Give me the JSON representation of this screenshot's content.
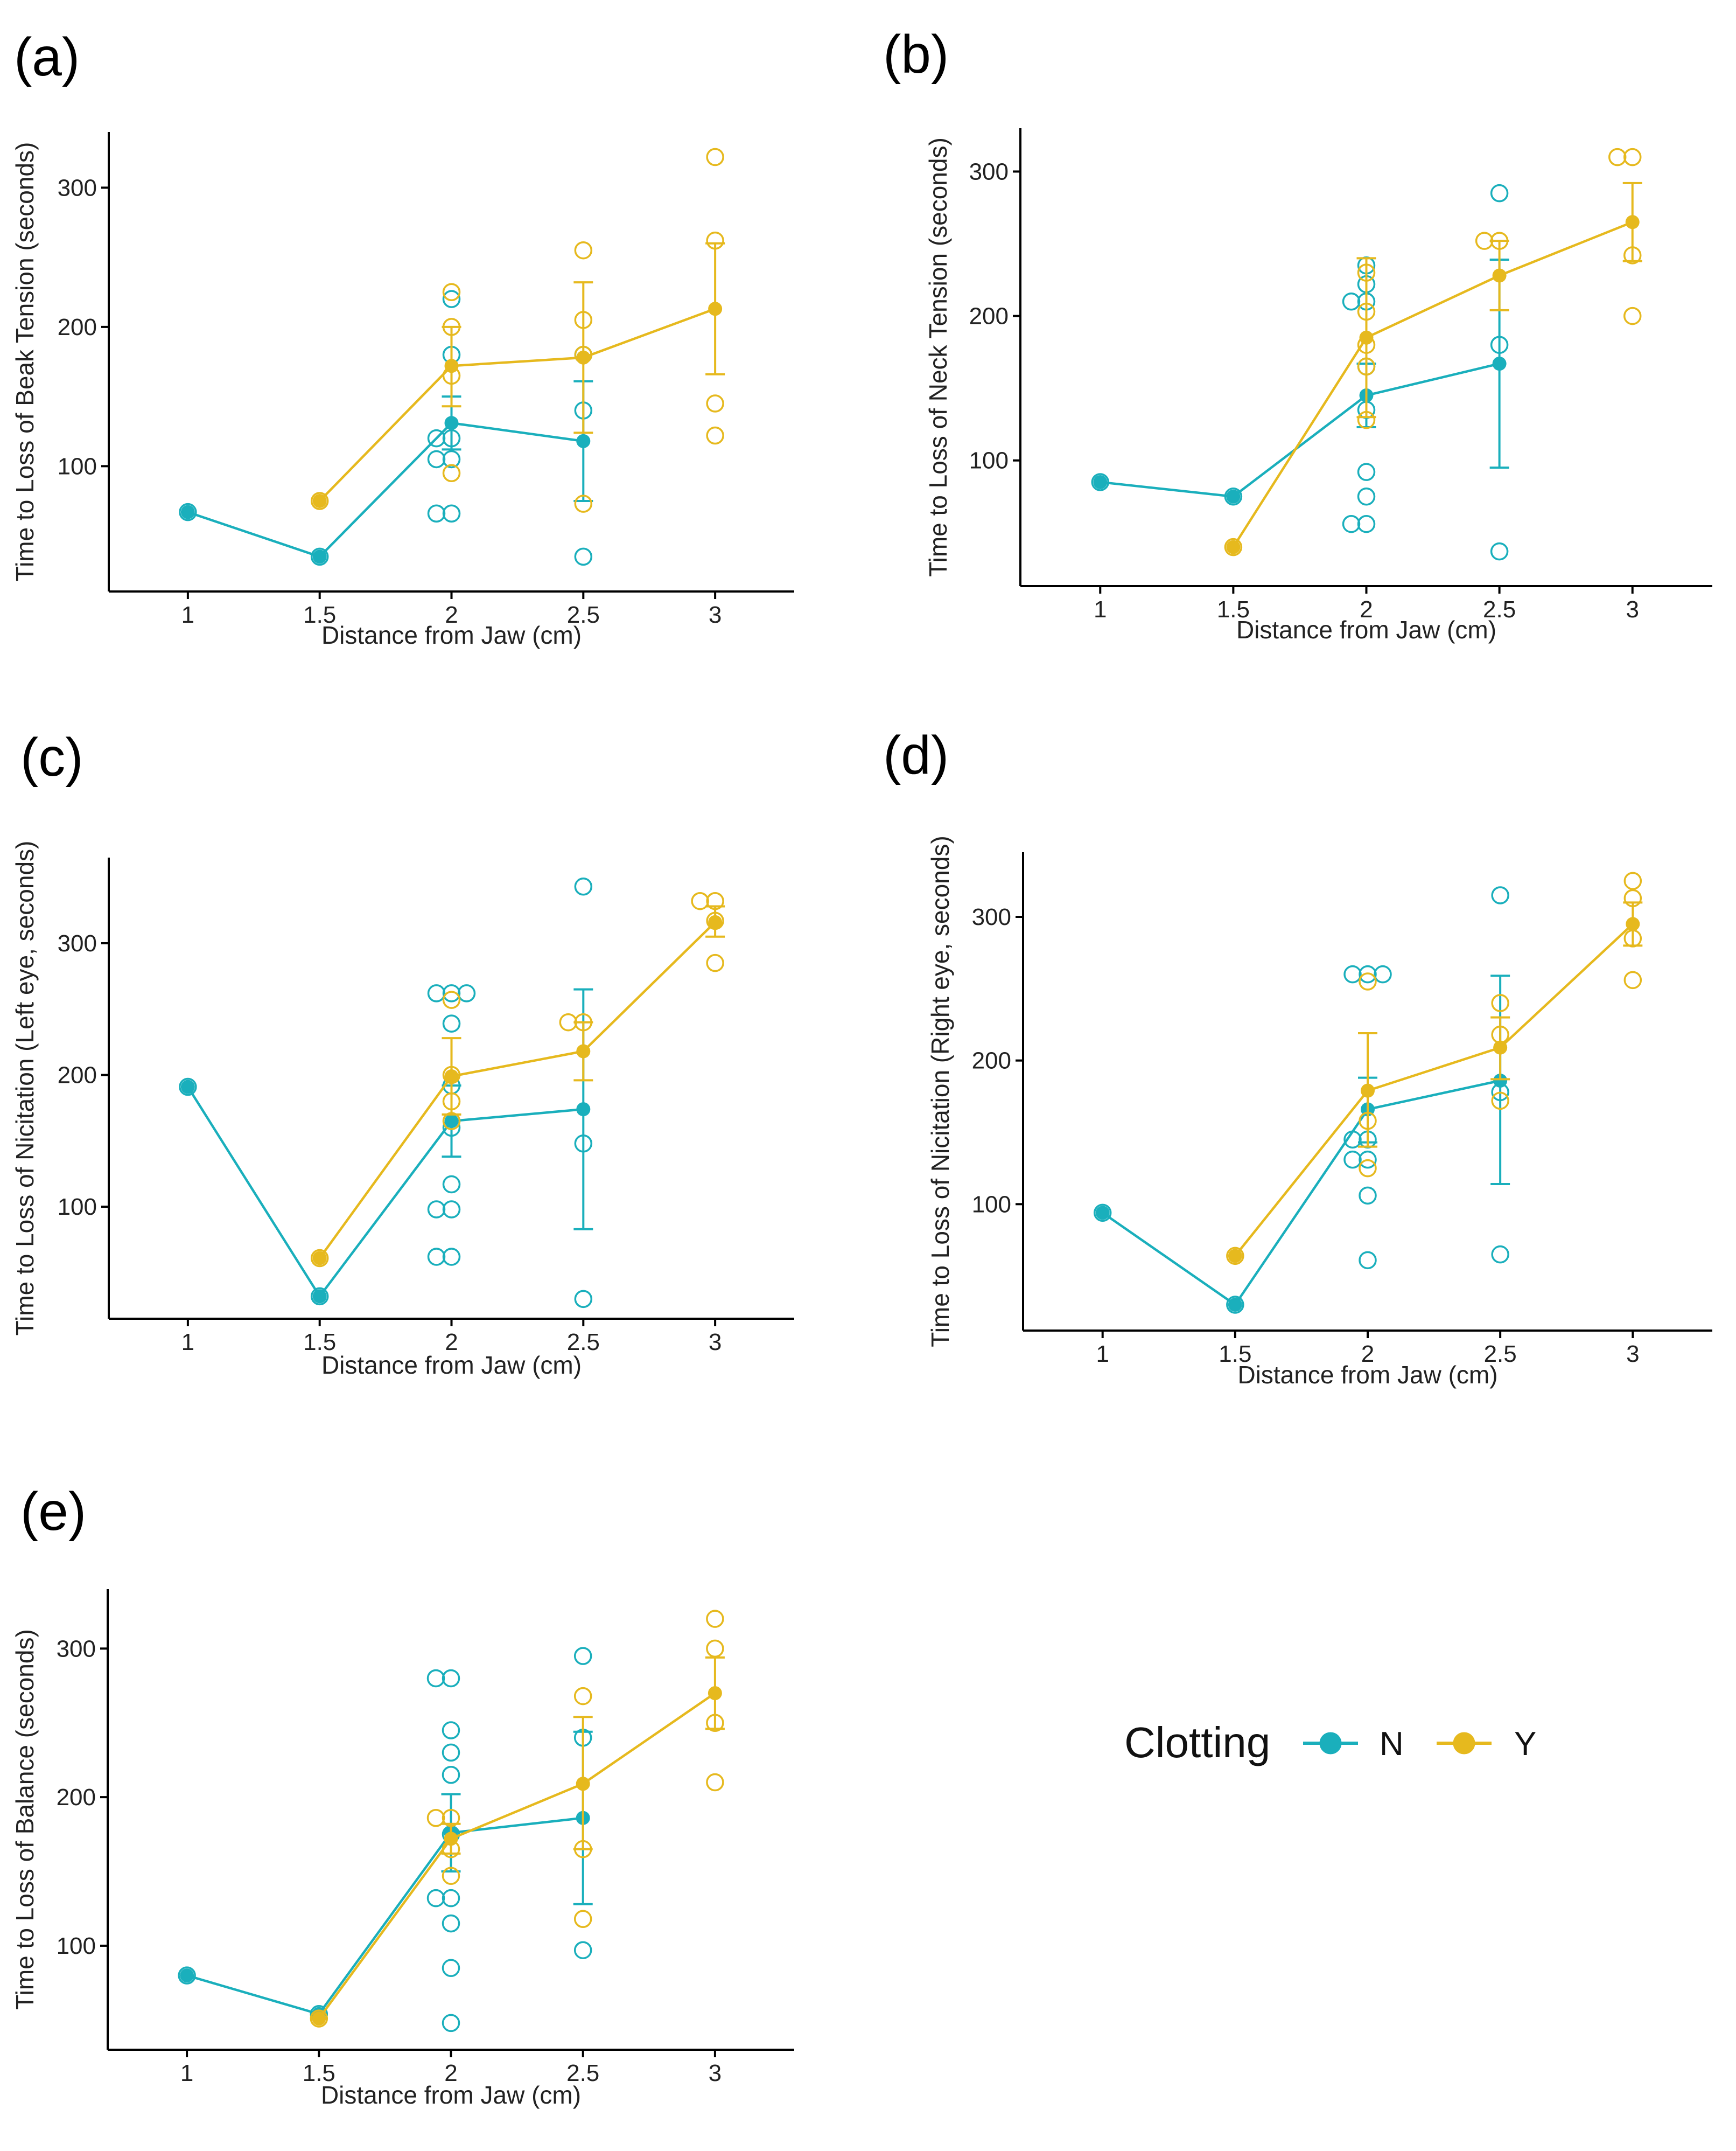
{
  "colors": {
    "N": "#1AAFBC",
    "Y": "#E6B91E"
  },
  "legend": {
    "title": "Clotting",
    "items": [
      {
        "key": "N",
        "label": "N"
      },
      {
        "key": "Y",
        "label": "Y"
      }
    ]
  },
  "chart_data": [
    {
      "type": "line",
      "panel": "(a)",
      "xlabel": "Distance from Jaw (cm)",
      "ylabel": "Time to Loss of Beak Tension (seconds)",
      "xlim": [
        0.7,
        3.3
      ],
      "ylim": [
        10,
        340
      ],
      "xticks": [
        1,
        1.5,
        2,
        2.5,
        3
      ],
      "xticklabels": [
        "1",
        "1.5",
        "2",
        "2.5",
        "3"
      ],
      "yticks": [
        100,
        200,
        300
      ],
      "yticklabels": [
        "100",
        "200",
        "300"
      ],
      "series": [
        {
          "name": "N",
          "means": [
            {
              "x": 1,
              "y": 67
            },
            {
              "x": 1.5,
              "y": 35
            },
            {
              "x": 2,
              "y": 131,
              "lo": 112,
              "hi": 150
            },
            {
              "x": 2.5,
              "y": 118,
              "lo": 75,
              "hi": 161
            }
          ],
          "points": [
            {
              "x": 1,
              "y": 67
            },
            {
              "x": 1.5,
              "y": 35
            },
            {
              "x": 2,
              "y": 220
            },
            {
              "x": 2,
              "y": 180
            },
            {
              "x": 2,
              "y": 120
            },
            {
              "x": 2,
              "y": 120
            },
            {
              "x": 2,
              "y": 105
            },
            {
              "x": 2,
              "y": 105
            },
            {
              "x": 2,
              "y": 66
            },
            {
              "x": 2,
              "y": 66
            },
            {
              "x": 2.5,
              "y": 180
            },
            {
              "x": 2.5,
              "y": 140
            },
            {
              "x": 2.5,
              "y": 35
            }
          ]
        },
        {
          "name": "Y",
          "means": [
            {
              "x": 1.5,
              "y": 75
            },
            {
              "x": 2,
              "y": 172,
              "lo": 143,
              "hi": 200
            },
            {
              "x": 2.5,
              "y": 178,
              "lo": 124,
              "hi": 232
            },
            {
              "x": 3,
              "y": 213,
              "lo": 166,
              "hi": 260
            }
          ],
          "points": [
            {
              "x": 1.5,
              "y": 75
            },
            {
              "x": 2,
              "y": 225
            },
            {
              "x": 2,
              "y": 200
            },
            {
              "x": 2,
              "y": 165
            },
            {
              "x": 2,
              "y": 95
            },
            {
              "x": 2.5,
              "y": 255
            },
            {
              "x": 2.5,
              "y": 205
            },
            {
              "x": 2.5,
              "y": 180
            },
            {
              "x": 2.5,
              "y": 73
            },
            {
              "x": 3,
              "y": 322
            },
            {
              "x": 3,
              "y": 262
            },
            {
              "x": 3,
              "y": 145
            },
            {
              "x": 3,
              "y": 122
            }
          ]
        }
      ]
    },
    {
      "type": "line",
      "panel": "(b)",
      "xlabel": "Distance from Jaw (cm)",
      "ylabel": "Time to Loss of Neck Tension (seconds)",
      "xlim": [
        0.7,
        3.3
      ],
      "ylim": [
        13,
        330
      ],
      "xticks": [
        1,
        1.5,
        2,
        2.5,
        3
      ],
      "xticklabels": [
        "1",
        "1.5",
        "2",
        "2.5",
        "3"
      ],
      "yticks": [
        100,
        200,
        300
      ],
      "yticklabels": [
        "100",
        "200",
        "300"
      ],
      "series": [
        {
          "name": "N",
          "means": [
            {
              "x": 1,
              "y": 85
            },
            {
              "x": 1.5,
              "y": 75
            },
            {
              "x": 2,
              "y": 145,
              "lo": 123,
              "hi": 167
            },
            {
              "x": 2.5,
              "y": 167,
              "lo": 95,
              "hi": 239
            }
          ],
          "points": [
            {
              "x": 1,
              "y": 85
            },
            {
              "x": 1.5,
              "y": 75
            },
            {
              "x": 2,
              "y": 235
            },
            {
              "x": 2,
              "y": 222
            },
            {
              "x": 2,
              "y": 210
            },
            {
              "x": 2,
              "y": 210
            },
            {
              "x": 2,
              "y": 165
            },
            {
              "x": 2,
              "y": 135
            },
            {
              "x": 2,
              "y": 92
            },
            {
              "x": 2,
              "y": 75
            },
            {
              "x": 2,
              "y": 56
            },
            {
              "x": 2,
              "y": 56
            },
            {
              "x": 2.5,
              "y": 285
            },
            {
              "x": 2.5,
              "y": 180
            },
            {
              "x": 2.5,
              "y": 37
            }
          ]
        },
        {
          "name": "Y",
          "means": [
            {
              "x": 1.5,
              "y": 40
            },
            {
              "x": 2,
              "y": 185,
              "lo": 130,
              "hi": 240
            },
            {
              "x": 2.5,
              "y": 228,
              "lo": 204,
              "hi": 252
            },
            {
              "x": 3,
              "y": 265,
              "lo": 238,
              "hi": 292
            }
          ],
          "points": [
            {
              "x": 1.5,
              "y": 40
            },
            {
              "x": 2,
              "y": 230
            },
            {
              "x": 2,
              "y": 203
            },
            {
              "x": 2,
              "y": 180
            },
            {
              "x": 2,
              "y": 165
            },
            {
              "x": 2,
              "y": 128
            },
            {
              "x": 2.5,
              "y": 252
            },
            {
              "x": 2.5,
              "y": 252
            },
            {
              "x": 3,
              "y": 310
            },
            {
              "x": 3,
              "y": 310
            },
            {
              "x": 3,
              "y": 242
            },
            {
              "x": 3,
              "y": 200
            }
          ]
        }
      ]
    },
    {
      "type": "line",
      "panel": "(c)",
      "xlabel": "Distance from Jaw (cm)",
      "ylabel": "Time to Loss of Nicitation (Left eye, seconds)",
      "xlim": [
        0.7,
        3.3
      ],
      "ylim": [
        15,
        365
      ],
      "xticks": [
        1,
        1.5,
        2,
        2.5,
        3
      ],
      "xticklabels": [
        "1",
        "1.5",
        "2",
        "2.5",
        "3"
      ],
      "yticks": [
        100,
        200,
        300
      ],
      "yticklabels": [
        "100",
        "200",
        "300"
      ],
      "series": [
        {
          "name": "N",
          "means": [
            {
              "x": 1,
              "y": 191
            },
            {
              "x": 1.5,
              "y": 32
            },
            {
              "x": 2,
              "y": 165,
              "lo": 138,
              "hi": 192
            },
            {
              "x": 2.5,
              "y": 174,
              "lo": 83,
              "hi": 265
            }
          ],
          "points": [
            {
              "x": 1,
              "y": 191
            },
            {
              "x": 1.5,
              "y": 32
            },
            {
              "x": 2,
              "y": 262
            },
            {
              "x": 2,
              "y": 262
            },
            {
              "x": 2,
              "y": 262
            },
            {
              "x": 2,
              "y": 239
            },
            {
              "x": 2,
              "y": 192
            },
            {
              "x": 2,
              "y": 160
            },
            {
              "x": 2,
              "y": 117
            },
            {
              "x": 2,
              "y": 98
            },
            {
              "x": 2,
              "y": 98
            },
            {
              "x": 2,
              "y": 62
            },
            {
              "x": 2,
              "y": 62
            },
            {
              "x": 2.5,
              "y": 343
            },
            {
              "x": 2.5,
              "y": 148
            },
            {
              "x": 2.5,
              "y": 30
            }
          ]
        },
        {
          "name": "Y",
          "means": [
            {
              "x": 1.5,
              "y": 61
            },
            {
              "x": 2,
              "y": 199,
              "lo": 170,
              "hi": 228
            },
            {
              "x": 2.5,
              "y": 218,
              "lo": 196,
              "hi": 240
            },
            {
              "x": 3,
              "y": 316,
              "lo": 305,
              "hi": 328
            }
          ],
          "points": [
            {
              "x": 1.5,
              "y": 61
            },
            {
              "x": 2,
              "y": 257
            },
            {
              "x": 2,
              "y": 200
            },
            {
              "x": 2,
              "y": 180
            },
            {
              "x": 2,
              "y": 165
            },
            {
              "x": 2.5,
              "y": 240
            },
            {
              "x": 2.5,
              "y": 240
            },
            {
              "x": 3,
              "y": 332
            },
            {
              "x": 3,
              "y": 332
            },
            {
              "x": 3,
              "y": 317
            },
            {
              "x": 3,
              "y": 285
            }
          ]
        }
      ]
    },
    {
      "type": "line",
      "panel": "(d)",
      "xlabel": "Distance from Jaw (cm)",
      "ylabel": "Time to Loss of Nicitation (Right eye, seconds)",
      "xlim": [
        0.7,
        3.3
      ],
      "ylim": [
        12,
        345
      ],
      "xticks": [
        1,
        1.5,
        2,
        2.5,
        3
      ],
      "xticklabels": [
        "1",
        "1.5",
        "2",
        "2.5",
        "3"
      ],
      "yticks": [
        100,
        200,
        300
      ],
      "yticklabels": [
        "100",
        "200",
        "300"
      ],
      "series": [
        {
          "name": "N",
          "means": [
            {
              "x": 1,
              "y": 94
            },
            {
              "x": 1.5,
              "y": 30
            },
            {
              "x": 2,
              "y": 166,
              "lo": 143,
              "hi": 188
            },
            {
              "x": 2.5,
              "y": 186,
              "lo": 114,
              "hi": 259
            }
          ],
          "points": [
            {
              "x": 1,
              "y": 94
            },
            {
              "x": 1.5,
              "y": 30
            },
            {
              "x": 2,
              "y": 260
            },
            {
              "x": 2,
              "y": 260
            },
            {
              "x": 2,
              "y": 260
            },
            {
              "x": 2,
              "y": 145
            },
            {
              "x": 2,
              "y": 145
            },
            {
              "x": 2,
              "y": 131
            },
            {
              "x": 2,
              "y": 131
            },
            {
              "x": 2,
              "y": 106
            },
            {
              "x": 2,
              "y": 61
            },
            {
              "x": 2.5,
              "y": 315
            },
            {
              "x": 2.5,
              "y": 178
            },
            {
              "x": 2.5,
              "y": 65
            }
          ]
        },
        {
          "name": "Y",
          "means": [
            {
              "x": 1.5,
              "y": 64
            },
            {
              "x": 2,
              "y": 179,
              "lo": 140,
              "hi": 219
            },
            {
              "x": 2.5,
              "y": 209,
              "lo": 187,
              "hi": 230
            },
            {
              "x": 3,
              "y": 295,
              "lo": 280,
              "hi": 310
            }
          ],
          "points": [
            {
              "x": 1.5,
              "y": 64
            },
            {
              "x": 2,
              "y": 255
            },
            {
              "x": 2,
              "y": 158
            },
            {
              "x": 2,
              "y": 125
            },
            {
              "x": 2.5,
              "y": 240
            },
            {
              "x": 2.5,
              "y": 218
            },
            {
              "x": 2.5,
              "y": 172
            },
            {
              "x": 3,
              "y": 325
            },
            {
              "x": 3,
              "y": 313
            },
            {
              "x": 3,
              "y": 285
            },
            {
              "x": 3,
              "y": 256
            }
          ]
        }
      ]
    },
    {
      "type": "line",
      "panel": "(e)",
      "xlabel": "Distance from Jaw (cm)",
      "ylabel": "Time to Loss of Balance (seconds)",
      "xlim": [
        0.7,
        3.3
      ],
      "ylim": [
        30,
        340
      ],
      "xticks": [
        1,
        1.5,
        2,
        2.5,
        3
      ],
      "xticklabels": [
        "1",
        "1.5",
        "2",
        "2.5",
        "3"
      ],
      "yticks": [
        100,
        200,
        300
      ],
      "yticklabels": [
        "100",
        "200",
        "300"
      ],
      "series": [
        {
          "name": "N",
          "means": [
            {
              "x": 1,
              "y": 80
            },
            {
              "x": 1.5,
              "y": 54
            },
            {
              "x": 2,
              "y": 176,
              "lo": 150,
              "hi": 202
            },
            {
              "x": 2.5,
              "y": 186,
              "lo": 128,
              "hi": 244
            }
          ],
          "points": [
            {
              "x": 1,
              "y": 80
            },
            {
              "x": 1.5,
              "y": 54
            },
            {
              "x": 2,
              "y": 280
            },
            {
              "x": 2,
              "y": 280
            },
            {
              "x": 2,
              "y": 245
            },
            {
              "x": 2,
              "y": 230
            },
            {
              "x": 2,
              "y": 215
            },
            {
              "x": 2,
              "y": 175
            },
            {
              "x": 2,
              "y": 132
            },
            {
              "x": 2,
              "y": 132
            },
            {
              "x": 2,
              "y": 115
            },
            {
              "x": 2,
              "y": 85
            },
            {
              "x": 2,
              "y": 48
            },
            {
              "x": 2.5,
              "y": 295
            },
            {
              "x": 2.5,
              "y": 240
            },
            {
              "x": 2.5,
              "y": 97
            }
          ]
        },
        {
          "name": "Y",
          "means": [
            {
              "x": 1.5,
              "y": 51
            },
            {
              "x": 2,
              "y": 172,
              "lo": 162,
              "hi": 182
            },
            {
              "x": 2.5,
              "y": 209,
              "lo": 165,
              "hi": 254
            },
            {
              "x": 3,
              "y": 270,
              "lo": 246,
              "hi": 294
            }
          ],
          "points": [
            {
              "x": 1.5,
              "y": 51
            },
            {
              "x": 2,
              "y": 186
            },
            {
              "x": 2,
              "y": 186
            },
            {
              "x": 2,
              "y": 165
            },
            {
              "x": 2,
              "y": 147
            },
            {
              "x": 2.5,
              "y": 268
            },
            {
              "x": 2.5,
              "y": 165
            },
            {
              "x": 2.5,
              "y": 118
            },
            {
              "x": 3,
              "y": 320
            },
            {
              "x": 3,
              "y": 300
            },
            {
              "x": 3,
              "y": 250
            },
            {
              "x": 3,
              "y": 210
            }
          ]
        }
      ]
    }
  ]
}
